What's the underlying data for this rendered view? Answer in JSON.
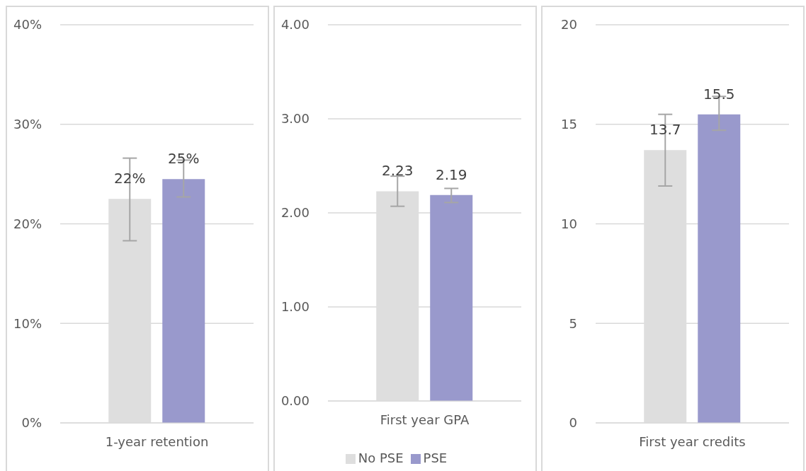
{
  "chart_data": [
    {
      "type": "bar",
      "categories": [
        "1-year retention"
      ],
      "series": [
        {
          "color": "#dedede",
          "values": [
            22.5
          ],
          "errors": [
            [
              18.3,
              26.6
            ]
          ],
          "value_labels": [
            "22%"
          ]
        },
        {
          "color": "#9999cc",
          "values": [
            24.5
          ],
          "errors": [
            [
              22.7,
              26.4
            ]
          ],
          "value_labels": [
            "25%"
          ]
        }
      ],
      "ylim": [
        0,
        40
      ],
      "yticks": [
        {
          "value": 0,
          "label": "0%"
        },
        {
          "value": 10,
          "label": "10%"
        },
        {
          "value": 20,
          "label": "20%"
        },
        {
          "value": 30,
          "label": "30%"
        },
        {
          "value": 40,
          "label": "40%"
        }
      ],
      "grid": "y",
      "legend": false
    },
    {
      "type": "bar",
      "categories": [
        "First year GPA"
      ],
      "series": [
        {
          "name": "No PSE",
          "color": "#dedede",
          "values": [
            2.23
          ],
          "errors": [
            [
              2.07,
              2.39
            ]
          ]
        },
        {
          "name": "PSE",
          "color": "#9999cc",
          "values": [
            2.19
          ],
          "errors": [
            [
              2.11,
              2.26
            ]
          ]
        }
      ],
      "ylim": [
        0,
        4
      ],
      "yticks": [
        {
          "value": 0,
          "label": "0.00"
        },
        {
          "value": 1,
          "label": "1.00"
        },
        {
          "value": 2,
          "label": "2.00"
        },
        {
          "value": 3,
          "label": "3.00"
        },
        {
          "value": 4,
          "label": "4.00"
        }
      ],
      "grid": "y",
      "legend": "bottom",
      "data_labels": true
    },
    {
      "type": "bar",
      "categories": [
        "First year credits"
      ],
      "series": [
        {
          "color": "#dedede",
          "values": [
            13.7
          ],
          "errors": [
            [
              11.9,
              15.5
            ]
          ]
        },
        {
          "color": "#9999cc",
          "values": [
            15.5
          ],
          "errors": [
            [
              14.7,
              16.4
            ]
          ]
        }
      ],
      "ylim": [
        0,
        20
      ],
      "yticks": [
        0,
        5,
        10,
        15,
        20
      ],
      "grid": "y",
      "legend": false,
      "data_labels": true
    }
  ]
}
